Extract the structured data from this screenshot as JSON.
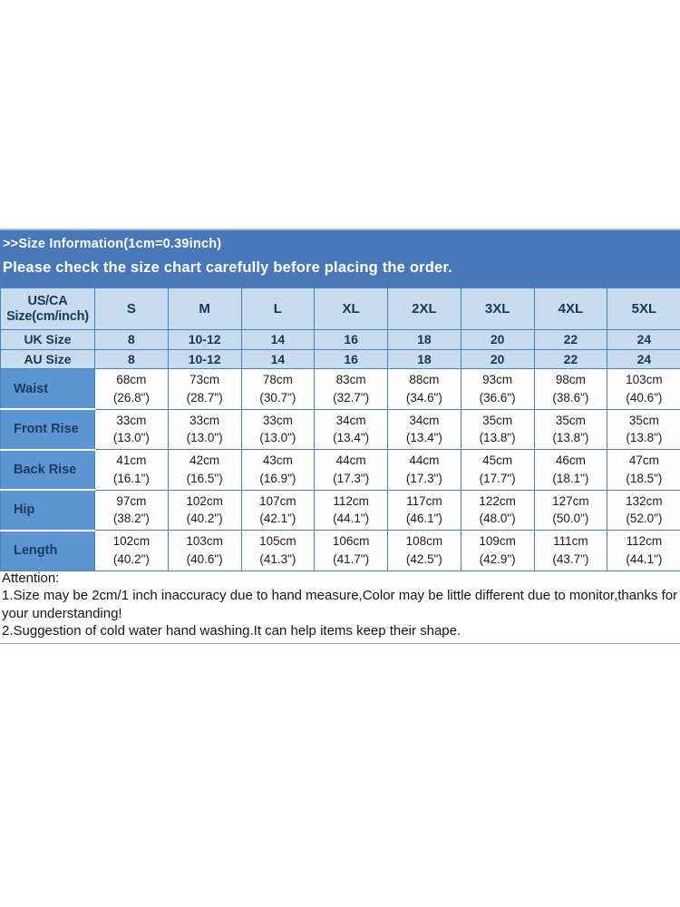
{
  "banner": {
    "line1": ">>Size Information(1cm=0.39inch)",
    "line2": "Please check the size chart carefully before placing the order.",
    "bg_color": "#4878BA",
    "text_color": "#FFFFFF"
  },
  "size_table": {
    "colors": {
      "border": "#4A80BD",
      "header_bg": "#C8DCF0",
      "label_bg": "#5B96D2",
      "header_text": "#16365C",
      "value_text": "#1C1C1C"
    },
    "header": {
      "label_line1": "US/CA",
      "label_line2": "Size(cm/inch)",
      "sizes": [
        "S",
        "M",
        "L",
        "XL",
        "2XL",
        "3XL",
        "4XL",
        "5XL"
      ]
    },
    "size_rows": [
      {
        "label": "UK Size",
        "values": [
          "8",
          "10-12",
          "14",
          "16",
          "18",
          "20",
          "22",
          "24"
        ]
      },
      {
        "label": "AU Size",
        "values": [
          "8",
          "10-12",
          "14",
          "16",
          "18",
          "20",
          "22",
          "24"
        ]
      }
    ],
    "measure_rows": [
      {
        "label": "Waist",
        "values": [
          {
            "cm": "68cm",
            "inch": "(26.8\")"
          },
          {
            "cm": "73cm",
            "inch": "(28.7\")"
          },
          {
            "cm": "78cm",
            "inch": "(30.7\")"
          },
          {
            "cm": "83cm",
            "inch": "(32.7\")"
          },
          {
            "cm": "88cm",
            "inch": "(34.6\")"
          },
          {
            "cm": "93cm",
            "inch": "(36.6\")"
          },
          {
            "cm": "98cm",
            "inch": "(38.6\")"
          },
          {
            "cm": "103cm",
            "inch": "(40.6\")"
          }
        ]
      },
      {
        "label": "Front Rise",
        "values": [
          {
            "cm": "33cm",
            "inch": "(13.0\")"
          },
          {
            "cm": "33cm",
            "inch": "(13.0\")"
          },
          {
            "cm": "33cm",
            "inch": "(13.0\")"
          },
          {
            "cm": "34cm",
            "inch": "(13.4\")"
          },
          {
            "cm": "34cm",
            "inch": "(13.4\")"
          },
          {
            "cm": "35cm",
            "inch": "(13.8\")"
          },
          {
            "cm": "35cm",
            "inch": "(13.8\")"
          },
          {
            "cm": "35cm",
            "inch": "(13.8\")"
          }
        ]
      },
      {
        "label": "Back Rise",
        "values": [
          {
            "cm": "41cm",
            "inch": "(16.1\")"
          },
          {
            "cm": "42cm",
            "inch": "(16.5\")"
          },
          {
            "cm": "43cm",
            "inch": "(16.9\")"
          },
          {
            "cm": "44cm",
            "inch": "(17.3\")"
          },
          {
            "cm": "44cm",
            "inch": "(17.3\")"
          },
          {
            "cm": "45cm",
            "inch": "(17.7\")"
          },
          {
            "cm": "46cm",
            "inch": "(18.1\")"
          },
          {
            "cm": "47cm",
            "inch": "(18.5\")"
          }
        ]
      },
      {
        "label": "Hip",
        "values": [
          {
            "cm": "97cm",
            "inch": "(38.2\")"
          },
          {
            "cm": "102cm",
            "inch": "(40.2\")"
          },
          {
            "cm": "107cm",
            "inch": "(42.1\")"
          },
          {
            "cm": "112cm",
            "inch": "(44.1\")"
          },
          {
            "cm": "117cm",
            "inch": "(46.1\")"
          },
          {
            "cm": "122cm",
            "inch": "(48.0\")"
          },
          {
            "cm": "127cm",
            "inch": "(50.0\")"
          },
          {
            "cm": "132cm",
            "inch": "(52.0\")"
          }
        ]
      },
      {
        "label": "Length",
        "values": [
          {
            "cm": "102cm",
            "inch": "(40.2\")"
          },
          {
            "cm": "103cm",
            "inch": "(40.6\")"
          },
          {
            "cm": "105cm",
            "inch": "(41.3\")"
          },
          {
            "cm": "106cm",
            "inch": "(41.7\")"
          },
          {
            "cm": "108cm",
            "inch": "(42.5\")"
          },
          {
            "cm": "109cm",
            "inch": "(42.9\")"
          },
          {
            "cm": "111cm",
            "inch": "(43.7\")"
          },
          {
            "cm": "112cm",
            "inch": "(44.1\")"
          }
        ]
      }
    ]
  },
  "notes": {
    "title": "Attention:",
    "items": [
      "1.Size may be 2cm/1 inch inaccuracy due to hand measure,Color may be little different due to monitor,thanks for your understanding!",
      "2.Suggestion of cold water hand washing.It can help items keep their shape."
    ]
  }
}
